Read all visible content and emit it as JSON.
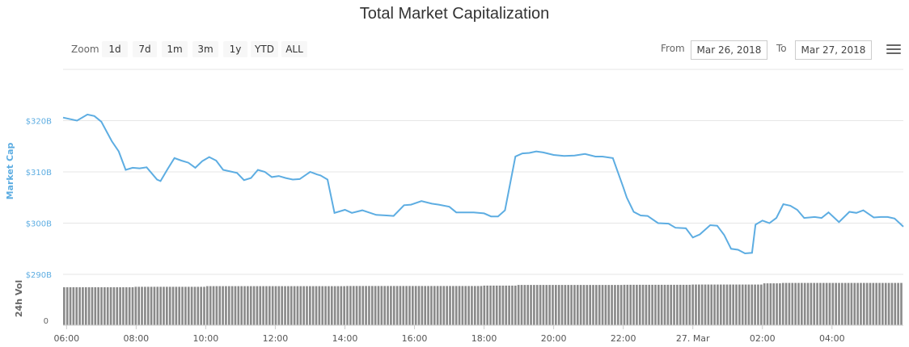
{
  "title": "Total Market Capitalization",
  "toolbar": {
    "zoom_label": "Zoom",
    "buttons": [
      "1d",
      "7d",
      "1m",
      "3m",
      "1y",
      "YTD",
      "ALL"
    ],
    "active": "1d",
    "from_label": "From",
    "from_value": "Mar 26, 2018",
    "to_label": "To",
    "to_value": "Mar 27, 2018",
    "menu_icon": "hamburger-icon"
  },
  "colors": {
    "line": "#5dade2",
    "volume": "#8a8a8a",
    "grid": "#e6e6e6",
    "axis_label": "#5dade2"
  },
  "chart_data": [
    {
      "type": "line",
      "ylabel": "Market Cap",
      "y_ticks": [
        "$290B",
        "$300B",
        "$310B",
        "$320B"
      ],
      "y_tick_values": [
        290,
        300,
        310,
        320
      ],
      "ylim": [
        290,
        330
      ],
      "grid": true,
      "x_ticks": [
        "06:00",
        "08:00",
        "10:00",
        "12:00",
        "14:00",
        "16:00",
        "18:00",
        "20:00",
        "22:00",
        "27. Mar",
        "02:00",
        "04:00"
      ],
      "x_tick_values": [
        6,
        8,
        10,
        12,
        14,
        16,
        18,
        20,
        22,
        24,
        26,
        28
      ],
      "xlim": [
        5.9,
        30.05
      ],
      "series": [
        {
          "x": [
            5.9,
            6.3,
            6.6,
            6.8,
            7.0,
            7.3,
            7.5,
            7.7,
            7.9,
            8.1,
            8.3,
            8.6,
            8.7,
            8.9,
            9.1,
            9.3,
            9.5,
            9.7,
            9.9,
            10.1,
            10.3,
            10.5,
            10.7,
            10.9,
            11.1,
            11.3,
            11.5,
            11.7,
            11.9,
            12.1,
            12.3,
            12.5,
            12.7,
            13.0,
            13.2,
            13.3,
            13.5,
            13.7,
            14.0,
            14.2,
            14.5,
            14.9,
            15.2,
            15.4,
            15.7,
            15.9,
            16.2,
            16.5,
            16.7,
            17.0,
            17.2,
            17.5,
            17.7,
            18.0,
            18.2,
            18.4,
            18.6,
            18.9,
            19.1,
            19.3,
            19.5,
            19.7,
            20.0,
            20.3,
            20.6,
            20.9,
            21.2,
            21.4,
            21.7,
            22.0,
            22.1,
            22.3,
            22.5,
            22.7,
            23.0,
            23.3,
            23.5,
            23.8,
            24.0,
            24.2,
            24.5,
            24.7,
            24.9,
            25.1,
            25.3,
            25.5,
            25.7,
            25.8,
            26.0,
            26.2,
            26.4,
            26.6,
            26.8,
            27.0,
            27.2,
            27.5,
            27.7,
            27.9,
            28.2,
            28.5,
            28.7,
            28.9,
            29.2,
            29.4,
            29.6,
            29.8,
            30.05
          ],
          "y": [
            320.6,
            320.0,
            321.2,
            320.9,
            319.8,
            316.0,
            314.0,
            310.4,
            310.8,
            310.7,
            310.9,
            308.5,
            308.2,
            310.5,
            312.7,
            312.2,
            311.8,
            310.8,
            312.1,
            312.9,
            312.2,
            310.4,
            310.1,
            309.8,
            308.4,
            308.8,
            310.4,
            310.0,
            309.0,
            309.2,
            308.8,
            308.5,
            308.6,
            310.0,
            309.5,
            309.3,
            308.5,
            302.0,
            302.6,
            302.0,
            302.5,
            301.6,
            301.5,
            301.4,
            303.5,
            303.6,
            304.3,
            303.8,
            303.6,
            303.2,
            302.1,
            302.1,
            302.1,
            301.9,
            301.3,
            301.3,
            302.5,
            313.0,
            313.6,
            313.7,
            314.0,
            313.8,
            313.3,
            313.1,
            313.2,
            313.5,
            313.0,
            313.0,
            312.7,
            307.0,
            305.0,
            302.2,
            301.5,
            301.4,
            300.0,
            299.9,
            299.1,
            299.0,
            297.2,
            297.8,
            299.6,
            299.5,
            297.7,
            295.0,
            294.8,
            294.1,
            294.2,
            299.7,
            300.5,
            300.0,
            301.0,
            303.7,
            303.4,
            302.6,
            301.0,
            301.2,
            301.0,
            302.1,
            300.2,
            302.2,
            302.0,
            302.5,
            301.1,
            301.2,
            301.2,
            300.9,
            299.3
          ]
        }
      ]
    },
    {
      "type": "bar",
      "ylabel": "24h Vol",
      "y_ticks": [
        "0"
      ],
      "y_tick_values": [
        0
      ],
      "ylim": [
        0,
        1.25
      ],
      "bar_count": 270,
      "x": [
        5.9,
        8.0,
        10.0,
        14.0,
        18.0,
        19.0,
        22.0,
        24.0,
        26.0,
        26.6,
        30.05
      ],
      "values": [
        0.935,
        0.945,
        0.96,
        0.965,
        0.975,
        0.99,
        0.995,
        1.0,
        1.03,
        1.04,
        1.04
      ]
    }
  ]
}
